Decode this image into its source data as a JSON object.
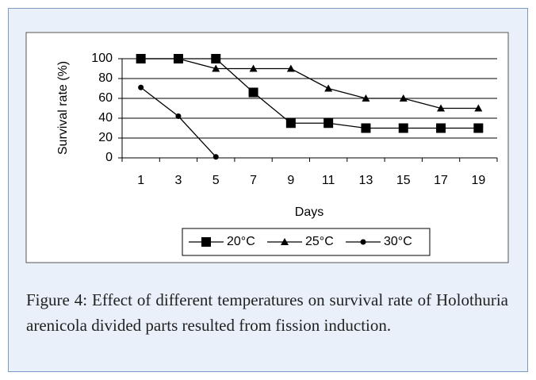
{
  "chart_data": {
    "type": "line",
    "caption": "Figure 4: Effect of different temperatures on survival rate of Holothuria arenicola divided parts resulted from fission induction.",
    "x_label": "Days",
    "y_label": "Survival rate (%)",
    "categories": [
      "1",
      "3",
      "5",
      "7",
      "9",
      "11",
      "13",
      "15",
      "17",
      "19"
    ],
    "series": [
      {
        "name": "20°C",
        "color": "#000000",
        "marker": "square",
        "values": [
          100,
          100,
          100,
          66,
          35,
          35,
          30,
          30,
          30,
          30
        ]
      },
      {
        "name": "25°C",
        "color": "#000000",
        "marker": "triangle",
        "values": [
          100,
          100,
          90,
          90,
          90,
          70,
          60,
          60,
          50,
          50
        ]
      },
      {
        "name": "30°C",
        "color": "#000000",
        "marker": "circle",
        "values": [
          71,
          42,
          1,
          null,
          null,
          null,
          null,
          null,
          null,
          null
        ]
      }
    ],
    "ylim": [
      0,
      100
    ],
    "yticks": [
      0,
      20,
      40,
      60,
      80,
      100
    ],
    "grid": true,
    "legend": "bottom"
  }
}
